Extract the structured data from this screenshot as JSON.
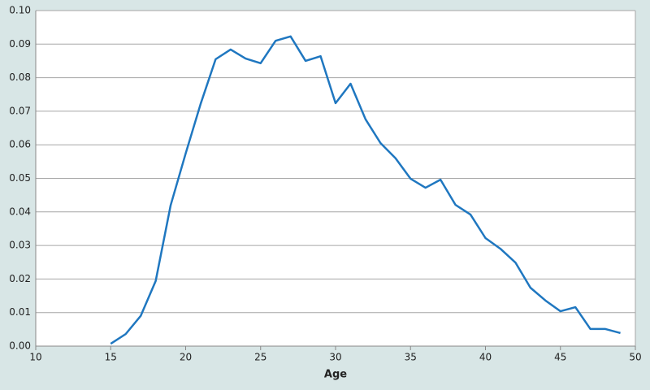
{
  "chart_data": {
    "type": "line",
    "xlabel": "Age",
    "x": [
      15,
      16,
      17,
      18,
      19,
      20,
      21,
      22,
      23,
      24,
      25,
      26,
      27,
      28,
      29,
      30,
      31,
      32,
      33,
      34,
      35,
      36,
      37,
      38,
      39,
      40,
      41,
      42,
      43,
      44,
      45,
      46,
      47,
      48,
      49
    ],
    "series": [
      {
        "color": "#1f77c0",
        "values": [
          0.0007,
          0.0036,
          0.009,
          0.0194,
          0.042,
          0.0574,
          0.0722,
          0.0855,
          0.0884,
          0.0857,
          0.0843,
          0.091,
          0.0923,
          0.085,
          0.0864,
          0.0724,
          0.0782,
          0.0676,
          0.0605,
          0.056,
          0.0499,
          0.0472,
          0.0496,
          0.0421,
          0.0392,
          0.0322,
          0.029,
          0.0249,
          0.0174,
          0.0136,
          0.0104,
          0.0116,
          0.0051,
          0.0051,
          0.0039
        ]
      }
    ],
    "xlim": [
      10,
      50
    ],
    "xticks": [
      10,
      15,
      20,
      25,
      30,
      35,
      40,
      45,
      50
    ],
    "ylim": [
      0,
      0.1
    ],
    "yticks": [
      {
        "value": 0,
        "label": "0.00"
      },
      {
        "value": 0.01,
        "label": "0.01"
      },
      {
        "value": 0.02,
        "label": "0.02"
      },
      {
        "value": 0.03,
        "label": "0.03"
      },
      {
        "value": 0.04,
        "label": "0.04"
      },
      {
        "value": 0.05,
        "label": "0.05"
      },
      {
        "value": 0.06,
        "label": "0.06"
      },
      {
        "value": 0.07,
        "label": "0.07"
      },
      {
        "value": 0.08,
        "label": "0.08"
      },
      {
        "value": 0.09,
        "label": "0.09"
      },
      {
        "value": 0.1,
        "label": "0.10"
      }
    ],
    "grid": true
  }
}
